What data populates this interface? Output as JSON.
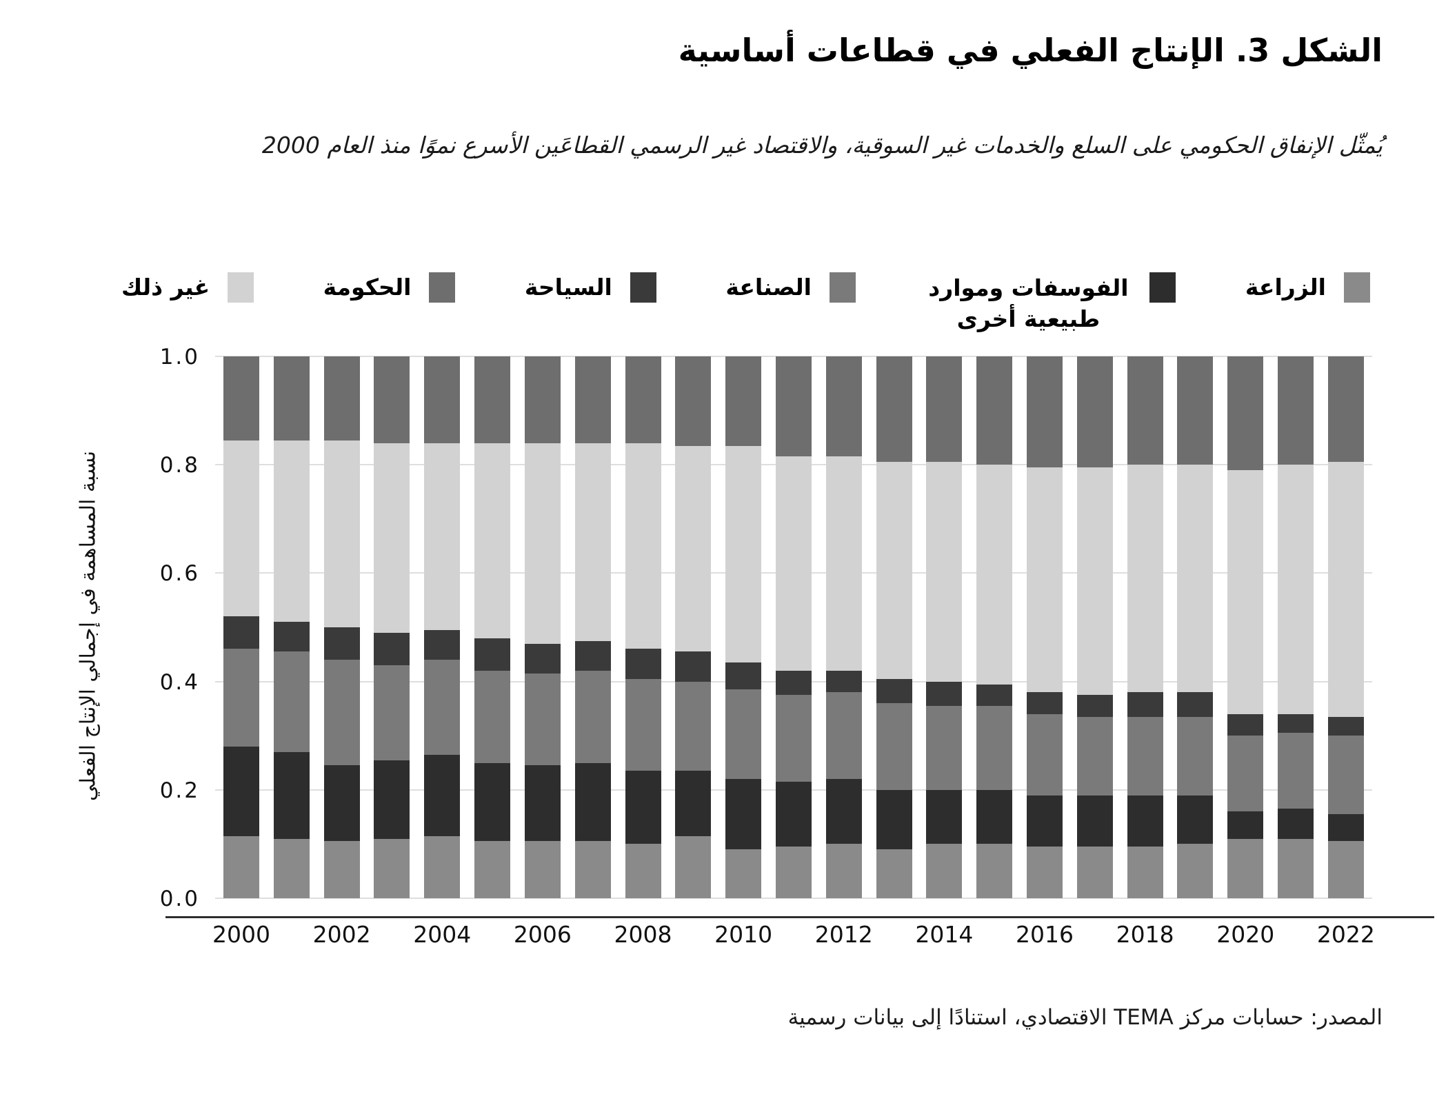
{
  "header": {
    "title": "الشكل 3. الإنتاج الفعلي في قطاعات أساسية",
    "subtitle": "يُمثّل الإنفاق الحكومي على السلع والخدمات غير السوقية، والاقتصاد غير الرسمي القطاعَين الأسرع نموًا منذ العام 2000"
  },
  "source": "المصدر: حسابات مركز TEMA الاقتصادي، استنادًا إلى بيانات رسمية",
  "colors": {
    "background": "#ffffff",
    "gridline": "#dedede",
    "axis_rule": "#2e2e2e",
    "text": "#111111"
  },
  "legend": {
    "items": [
      {
        "key": "agriculture",
        "label": "الزراعة",
        "color": "#8a8a8a"
      },
      {
        "key": "phosphates-natural-resources",
        "label": "الفوسفات وموارد طبيعية أخرى",
        "color": "#2d2d2d",
        "multiline": true
      },
      {
        "key": "industry",
        "label": "الصناعة",
        "color": "#7a7a7a"
      },
      {
        "key": "tourism",
        "label": "السياحة",
        "color": "#3a3a3a"
      },
      {
        "key": "government",
        "label": "الحكومة",
        "color": "#6e6e6e"
      },
      {
        "key": "other",
        "label": "غير ذلك",
        "color": "#d2d2d2"
      }
    ]
  },
  "chart_data": {
    "type": "bar",
    "stacked": true,
    "title": "الشكل 3. الإنتاج الفعلي في قطاعات أساسية",
    "ylabel": "نسبة المساهمة في إجمالي الإنتاج الفعلي",
    "xlabel": "",
    "ylim": [
      0,
      1
    ],
    "grid": true,
    "legend_position": "top",
    "y_tick_labels": [
      "0.0",
      "0.2",
      "0.4",
      "0.6",
      "0.8",
      "1.0"
    ],
    "categories": [
      2000,
      2001,
      2002,
      2003,
      2004,
      2005,
      2006,
      2007,
      2008,
      2009,
      2010,
      2011,
      2012,
      2013,
      2014,
      2015,
      2016,
      2017,
      2018,
      2019,
      2020,
      2021,
      2022
    ],
    "x_tick_indices": [
      0,
      2,
      4,
      6,
      8,
      10,
      12,
      14,
      16,
      18,
      20,
      22
    ],
    "x_tick_labels": [
      "2000",
      "2002",
      "2004",
      "2006",
      "2008",
      "2010",
      "2012",
      "2014",
      "2016",
      "2018",
      "2020",
      "2022"
    ],
    "series": [
      {
        "key": "agriculture",
        "name": "الزراعة",
        "color": "#8a8a8a",
        "values": [
          0.115,
          0.11,
          0.105,
          0.11,
          0.115,
          0.105,
          0.105,
          0.105,
          0.1,
          0.115,
          0.09,
          0.095,
          0.1,
          0.09,
          0.1,
          0.1,
          0.095,
          0.095,
          0.095,
          0.1,
          0.11,
          0.11,
          0.105
        ]
      },
      {
        "key": "phosphates-natural-resources",
        "name": "الفوسفات وموارد طبيعية أخرى",
        "color": "#2d2d2d",
        "values": [
          0.165,
          0.16,
          0.14,
          0.145,
          0.15,
          0.145,
          0.14,
          0.145,
          0.135,
          0.12,
          0.13,
          0.12,
          0.12,
          0.11,
          0.1,
          0.1,
          0.095,
          0.095,
          0.095,
          0.09,
          0.05,
          0.055,
          0.05
        ]
      },
      {
        "key": "industry",
        "name": "الصناعة",
        "color": "#7a7a7a",
        "values": [
          0.18,
          0.185,
          0.195,
          0.175,
          0.175,
          0.17,
          0.17,
          0.17,
          0.17,
          0.165,
          0.165,
          0.16,
          0.16,
          0.16,
          0.155,
          0.155,
          0.15,
          0.145,
          0.145,
          0.145,
          0.14,
          0.14,
          0.145
        ]
      },
      {
        "key": "tourism",
        "name": "السياحة",
        "color": "#3a3a3a",
        "values": [
          0.06,
          0.055,
          0.06,
          0.06,
          0.055,
          0.06,
          0.055,
          0.055,
          0.055,
          0.055,
          0.05,
          0.045,
          0.04,
          0.045,
          0.045,
          0.04,
          0.04,
          0.04,
          0.045,
          0.045,
          0.04,
          0.035,
          0.035
        ]
      },
      {
        "key": "other",
        "name": "غير ذلك",
        "color": "#d2d2d2",
        "values": [
          0.325,
          0.335,
          0.345,
          0.35,
          0.345,
          0.36,
          0.37,
          0.365,
          0.38,
          0.38,
          0.4,
          0.395,
          0.395,
          0.4,
          0.405,
          0.405,
          0.415,
          0.42,
          0.42,
          0.42,
          0.45,
          0.46,
          0.47
        ]
      },
      {
        "key": "government",
        "name": "الحكومة",
        "color": "#6e6e6e",
        "values": [
          0.155,
          0.155,
          0.155,
          0.16,
          0.16,
          0.16,
          0.16,
          0.16,
          0.16,
          0.165,
          0.165,
          0.185,
          0.185,
          0.195,
          0.195,
          0.2,
          0.205,
          0.205,
          0.2,
          0.2,
          0.21,
          0.2,
          0.195
        ]
      }
    ]
  }
}
